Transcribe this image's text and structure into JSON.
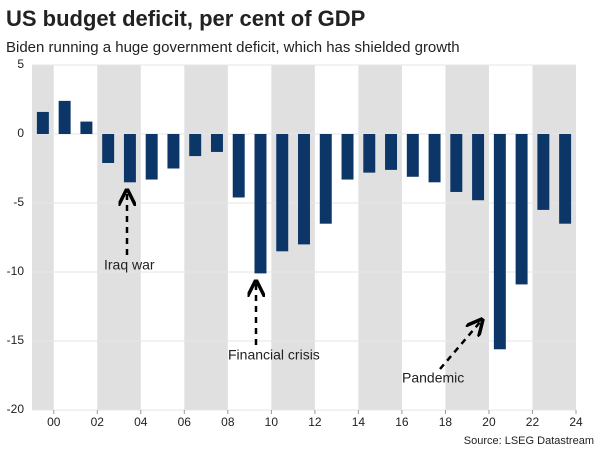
{
  "chart_data": {
    "type": "bar",
    "title": "US budget deficit, per cent of GDP",
    "subtitle": "Biden running a huge government deficit, which has shielded growth",
    "source": "Source: LSEG Datastream",
    "x": [
      1999,
      2000,
      2001,
      2002,
      2003,
      2004,
      2005,
      2006,
      2007,
      2008,
      2009,
      2010,
      2011,
      2012,
      2013,
      2014,
      2015,
      2016,
      2017,
      2018,
      2019,
      2020,
      2021,
      2022,
      2023
    ],
    "values": [
      1.6,
      2.4,
      0.9,
      -2.1,
      -3.5,
      -3.3,
      -2.5,
      -1.6,
      -1.3,
      -4.6,
      -10.1,
      -8.5,
      -8.0,
      -6.5,
      -3.3,
      -2.8,
      -2.6,
      -3.1,
      -3.5,
      -4.2,
      -4.8,
      -15.6,
      -10.9,
      -5.5,
      -6.5
    ],
    "color": "#0d3668",
    "xlim": [
      1999,
      2024
    ],
    "xticks": [
      {
        "value": 2000,
        "label": "00"
      },
      {
        "value": 2002,
        "label": "02"
      },
      {
        "value": 2004,
        "label": "04"
      },
      {
        "value": 2006,
        "label": "06"
      },
      {
        "value": 2008,
        "label": "08"
      },
      {
        "value": 2010,
        "label": "10"
      },
      {
        "value": 2012,
        "label": "12"
      },
      {
        "value": 2014,
        "label": "14"
      },
      {
        "value": 2016,
        "label": "16"
      },
      {
        "value": 2018,
        "label": "18"
      },
      {
        "value": 2020,
        "label": "20"
      },
      {
        "value": 2022,
        "label": "22"
      },
      {
        "value": 2024,
        "label": "24"
      }
    ],
    "ylim": [
      -20,
      5
    ],
    "yticks": [
      -20,
      -15,
      -10,
      -5,
      0,
      5
    ],
    "grid": true,
    "annotations": [
      "Iraq war",
      "Financial crisis",
      "Pandemic"
    ]
  }
}
